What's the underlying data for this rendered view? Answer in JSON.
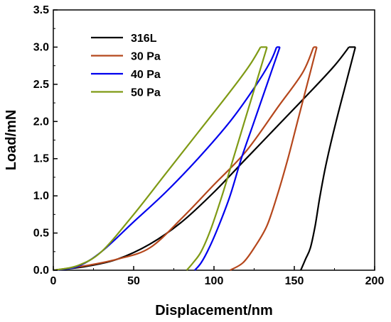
{
  "chart_data": {
    "type": "line",
    "title": "",
    "xlabel": "Displacement/nm",
    "ylabel": "Load/mN",
    "xlim": [
      0,
      200
    ],
    "ylim": [
      0,
      3.5
    ],
    "x_ticks": [
      "0",
      "50",
      "100",
      "150",
      "200"
    ],
    "y_ticks": [
      "0.0",
      "0.5",
      "1.0",
      "1.5",
      "2.0",
      "2.5",
      "3.0",
      "3.5"
    ],
    "grid": false,
    "legend_position": "top-left",
    "series": [
      {
        "name": "316L",
        "color": "#000000",
        "loading": [
          [
            0,
            0
          ],
          [
            20,
            0.05
          ],
          [
            40,
            0.15
          ],
          [
            60,
            0.35
          ],
          [
            80,
            0.65
          ],
          [
            100,
            1.05
          ],
          [
            120,
            1.5
          ],
          [
            140,
            1.95
          ],
          [
            160,
            2.4
          ],
          [
            175,
            2.75
          ],
          [
            184,
            3.0
          ]
        ],
        "hold": [
          [
            184,
            3.0
          ],
          [
            188,
            3.0
          ]
        ],
        "unloading": [
          [
            188,
            3.0
          ],
          [
            182,
            2.5
          ],
          [
            176,
            2.0
          ],
          [
            170,
            1.45
          ],
          [
            166,
            1.0
          ],
          [
            163,
            0.6
          ],
          [
            160,
            0.3
          ],
          [
            157,
            0.15
          ],
          [
            154,
            0.0
          ]
        ]
      },
      {
        "name": "30 Pa",
        "color": "#b5471c",
        "loading": [
          [
            0,
            0
          ],
          [
            20,
            0.06
          ],
          [
            40,
            0.15
          ],
          [
            60,
            0.3
          ],
          [
            80,
            0.7
          ],
          [
            100,
            1.15
          ],
          [
            120,
            1.6
          ],
          [
            140,
            2.2
          ],
          [
            155,
            2.65
          ],
          [
            162,
            3.0
          ]
        ],
        "hold": [
          [
            162,
            3.0
          ],
          [
            164,
            3.0
          ]
        ],
        "unloading": [
          [
            164,
            3.0
          ],
          [
            158,
            2.5
          ],
          [
            152,
            2.0
          ],
          [
            146,
            1.5
          ],
          [
            140,
            1.05
          ],
          [
            133,
            0.6
          ],
          [
            125,
            0.3
          ],
          [
            118,
            0.1
          ],
          [
            110,
            0.0
          ]
        ]
      },
      {
        "name": "40 Pa",
        "color": "#0000ee",
        "loading": [
          [
            0,
            0
          ],
          [
            15,
            0.05
          ],
          [
            30,
            0.25
          ],
          [
            50,
            0.65
          ],
          [
            70,
            1.05
          ],
          [
            90,
            1.5
          ],
          [
            110,
            2.0
          ],
          [
            125,
            2.45
          ],
          [
            135,
            2.8
          ],
          [
            139,
            3.0
          ]
        ],
        "hold": [
          [
            139,
            3.0
          ],
          [
            141,
            3.0
          ]
        ],
        "unloading": [
          [
            141,
            3.0
          ],
          [
            133,
            2.5
          ],
          [
            125,
            2.0
          ],
          [
            117,
            1.5
          ],
          [
            110,
            1.0
          ],
          [
            103,
            0.6
          ],
          [
            97,
            0.3
          ],
          [
            92,
            0.1
          ],
          [
            88,
            0.0
          ]
        ]
      },
      {
        "name": "50 Pa",
        "color": "#7f9a14",
        "loading": [
          [
            0,
            0
          ],
          [
            15,
            0.06
          ],
          [
            30,
            0.25
          ],
          [
            50,
            0.75
          ],
          [
            70,
            1.3
          ],
          [
            90,
            1.85
          ],
          [
            110,
            2.4
          ],
          [
            122,
            2.75
          ],
          [
            129,
            3.0
          ]
        ],
        "hold": [
          [
            129,
            3.0
          ],
          [
            133,
            3.0
          ]
        ],
        "unloading": [
          [
            133,
            3.0
          ],
          [
            126,
            2.5
          ],
          [
            119,
            2.0
          ],
          [
            112,
            1.5
          ],
          [
            105,
            1.0
          ],
          [
            98,
            0.55
          ],
          [
            92,
            0.25
          ],
          [
            87,
            0.1
          ],
          [
            83,
            0.0
          ]
        ]
      }
    ]
  }
}
